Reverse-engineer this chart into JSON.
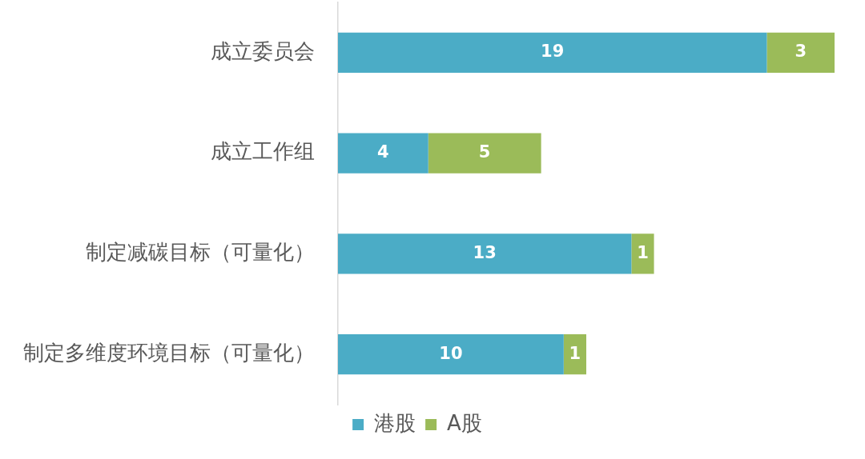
{
  "chart_data": {
    "type": "bar",
    "orientation": "horizontal",
    "stacked": true,
    "categories": [
      "成立委员会",
      "成立工作组",
      "制定减碳目标（可量化）",
      "制定多维度环境目标（可量化）"
    ],
    "series": [
      {
        "name": "港股",
        "color": "#4bacc6",
        "values": [
          19,
          4,
          13,
          10
        ]
      },
      {
        "name": "A股",
        "color": "#9bbb59",
        "values": [
          3,
          5,
          1,
          1
        ]
      }
    ],
    "data_labels": true,
    "legend": "bottom"
  }
}
